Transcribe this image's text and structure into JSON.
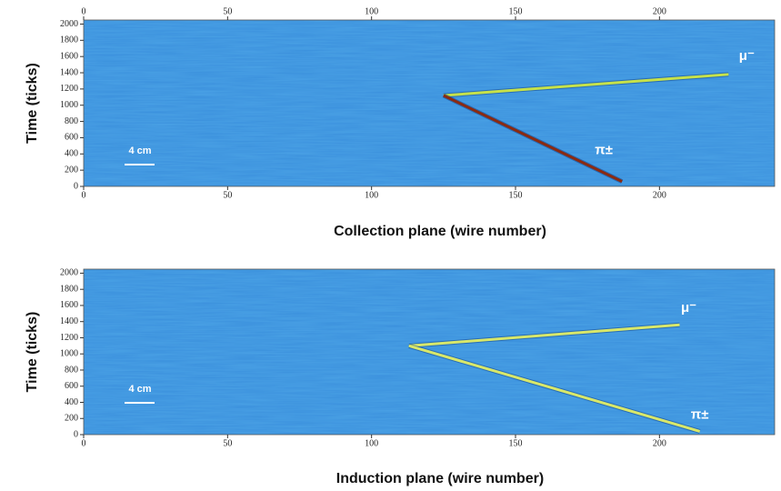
{
  "chart_data": [
    {
      "type": "line",
      "ylabel": "Time (ticks)",
      "xlabel": "Collection plane (wire number)",
      "scale_bar_label": "4 cm",
      "top_axis": true,
      "xlim": [
        0,
        240
      ],
      "ylim": [
        0,
        2050
      ],
      "xticks": [
        0,
        50,
        100,
        150,
        200
      ],
      "yticks": [
        0,
        200,
        400,
        600,
        800,
        1000,
        1200,
        1400,
        1600,
        1800,
        2000
      ],
      "series": [
        {
          "name": "μ⁻",
          "color": "#c6e24a",
          "x": [
            125,
            224
          ],
          "values": [
            1120,
            1380
          ]
        },
        {
          "name": "π±",
          "color": "#8a2a12",
          "x": [
            125,
            187
          ],
          "values": [
            1120,
            60
          ]
        }
      ]
    },
    {
      "type": "line",
      "ylabel": "Time (ticks)",
      "xlabel": "Induction plane (wire number)",
      "scale_bar_label": "4 cm",
      "top_axis": false,
      "xlim": [
        0,
        240
      ],
      "ylim": [
        0,
        2050
      ],
      "xticks": [
        0,
        50,
        100,
        150,
        200
      ],
      "yticks": [
        0,
        200,
        400,
        600,
        800,
        1000,
        1200,
        1400,
        1600,
        1800,
        2000
      ],
      "series": [
        {
          "name": "μ⁻",
          "color": "#d8e86a",
          "x": [
            113,
            207
          ],
          "values": [
            1100,
            1360
          ]
        },
        {
          "name": "π±",
          "color": "#d8e86a",
          "x": [
            113,
            214
          ],
          "values": [
            1100,
            40
          ]
        }
      ]
    }
  ]
}
